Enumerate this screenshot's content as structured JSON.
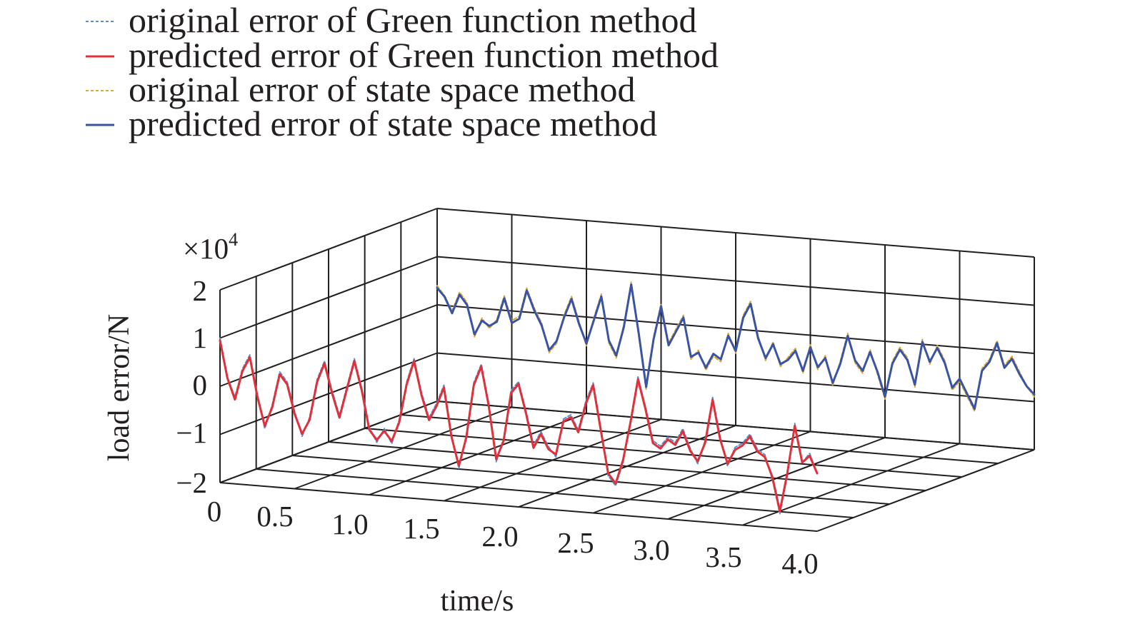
{
  "chart_data": {
    "type": "line",
    "projection": "3d",
    "xlabel": "time/s",
    "ylabel": "load error/N",
    "yscale_label": "×10",
    "yscale_exponent": "4",
    "xticks": [
      "0",
      "0.5",
      "1.0",
      "1.5",
      "2.0",
      "2.5",
      "3.0",
      "3.5",
      "4.0"
    ],
    "yticks": [
      "2",
      "1",
      "0",
      "−1",
      "−2"
    ],
    "xlim": [
      0,
      4
    ],
    "ylim": [
      -20000,
      20000
    ],
    "grid": true,
    "legend_position": "top-left",
    "x": [
      0.0,
      0.05,
      0.1,
      0.15,
      0.2,
      0.25,
      0.3,
      0.35,
      0.4,
      0.45,
      0.5,
      0.55,
      0.6,
      0.65,
      0.7,
      0.75,
      0.8,
      0.85,
      0.9,
      0.95,
      1.0,
      1.05,
      1.1,
      1.15,
      1.2,
      1.25,
      1.3,
      1.35,
      1.4,
      1.45,
      1.5,
      1.55,
      1.6,
      1.65,
      1.7,
      1.75,
      1.8,
      1.85,
      1.9,
      1.95,
      2.0,
      2.05,
      2.1,
      2.15,
      2.2,
      2.25,
      2.3,
      2.35,
      2.4,
      2.45,
      2.5,
      2.55,
      2.6,
      2.65,
      2.7,
      2.75,
      2.8,
      2.85,
      2.9,
      2.95,
      3.0,
      3.05,
      3.1,
      3.15,
      3.2,
      3.25,
      3.3,
      3.35,
      3.4,
      3.45,
      3.5,
      3.55,
      3.6,
      3.65,
      3.7,
      3.75,
      3.8,
      3.85,
      3.9,
      3.95,
      4.0
    ],
    "series": [
      {
        "name": "original error of Green function method",
        "method": "green",
        "style": "dashed",
        "color": "#5b8fd0",
        "values": [
          10000,
          2000,
          -2000,
          4000,
          7000,
          -1000,
          -8000,
          -3000,
          4000,
          2000,
          -4000,
          -9000,
          -5000,
          3000,
          7000,
          1000,
          -4000,
          2000,
          8000,
          2000,
          -6000,
          -9000,
          -6000,
          -9000,
          -4000,
          4000,
          9000,
          2000,
          -3000,
          0,
          4000,
          -6000,
          -13000,
          -6000,
          5000,
          9000,
          1000,
          -11000,
          -6000,
          4000,
          6000,
          0,
          -7000,
          -4000,
          -7000,
          -9000,
          -1000,
          0,
          -3000,
          3000,
          7000,
          -2000,
          -12000,
          -14000,
          -9000,
          0,
          9000,
          3000,
          -4000,
          -5000,
          -3000,
          -4000,
          -1000,
          -5000,
          -8000,
          -3000,
          6000,
          -2000,
          -8000,
          -4000,
          -3000,
          -1000,
          -4000,
          -5000,
          -10000,
          -17000,
          -9000,
          2000,
          -6000,
          -4000,
          -8000
        ]
      },
      {
        "name": "predicted error of Green function method",
        "method": "green",
        "style": "solid",
        "color": "#e0303a",
        "values": [
          9500,
          1800,
          -2500,
          3500,
          6500,
          -1500,
          -7500,
          -3500,
          3500,
          1500,
          -4500,
          -8500,
          -5500,
          2500,
          6500,
          500,
          -4500,
          1500,
          7500,
          1500,
          -6500,
          -8500,
          -6500,
          -8500,
          -4500,
          3500,
          8500,
          1500,
          -3500,
          -500,
          3500,
          -6500,
          -12500,
          -6500,
          4500,
          8500,
          500,
          -10500,
          -6500,
          3500,
          5500,
          -500,
          -7500,
          -4500,
          -7500,
          -8500,
          -1500,
          -500,
          -3500,
          2500,
          6500,
          -2500,
          -11500,
          -13500,
          -8500,
          -500,
          8500,
          2500,
          -4500,
          -5500,
          -3500,
          -4500,
          -1500,
          -5500,
          -7500,
          -3500,
          5500,
          -2500,
          -7500,
          -4500,
          -3500,
          -1500,
          -4500,
          -5500,
          -9500,
          -16500,
          -8500,
          1500,
          -6000,
          -4500,
          -8000
        ]
      },
      {
        "name": "original error of state space method",
        "method": "state",
        "style": "dashed",
        "color": "#d8a736",
        "values": [
          4000,
          2000,
          -1000,
          3000,
          1000,
          -6000,
          -2000,
          -4000,
          -2000,
          3000,
          -2000,
          -1000,
          5000,
          1000,
          -2000,
          -8000,
          -6000,
          0,
          4000,
          -1000,
          -6000,
          0,
          5000,
          -5000,
          -8000,
          -1000,
          8000,
          -3000,
          -14000,
          -3000,
          4000,
          -4000,
          -1000,
          2000,
          -7000,
          -5000,
          -9000,
          -6000,
          -7000,
          -1000,
          -5000,
          3000,
          6000,
          -1000,
          -6000,
          -2000,
          -7000,
          -5000,
          -3000,
          -8000,
          -2000,
          -7000,
          -4000,
          -10000,
          -5000,
          1000,
          -5000,
          -7000,
          -2000,
          -7000,
          -12000,
          -4000,
          -1000,
          -3000,
          -9000,
          1000,
          -4000,
          0,
          -3000,
          -9000,
          -7000,
          -10000,
          -13000,
          -4000,
          -2000,
          2000,
          -3000,
          -1000,
          -4000,
          -7000,
          -9000
        ]
      },
      {
        "name": "predicted error of state space method",
        "method": "state",
        "style": "solid",
        "color": "#3a54a4",
        "values": [
          3500,
          1800,
          -1500,
          2500,
          500,
          -5500,
          -2500,
          -3500,
          -2500,
          2500,
          -2500,
          -1500,
          4500,
          500,
          -2500,
          -7500,
          -5500,
          -500,
          3500,
          -1500,
          -5500,
          -500,
          4500,
          -4500,
          -7500,
          -1500,
          7500,
          -2500,
          -13500,
          -3500,
          3500,
          -4500,
          -1500,
          1500,
          -6500,
          -5500,
          -8500,
          -5500,
          -6500,
          -1500,
          -4500,
          2500,
          5500,
          -1500,
          -5500,
          -2500,
          -6500,
          -5500,
          -3500,
          -7500,
          -2500,
          -6500,
          -4500,
          -9500,
          -5500,
          500,
          -4500,
          -6500,
          -2500,
          -6500,
          -11500,
          -4500,
          -1500,
          -3500,
          -8500,
          500,
          -3500,
          -500,
          -3500,
          -8500,
          -6500,
          -9500,
          -12500,
          -4500,
          -2500,
          1500,
          -3500,
          -1500,
          -4500,
          -7000,
          -8500
        ]
      }
    ]
  }
}
